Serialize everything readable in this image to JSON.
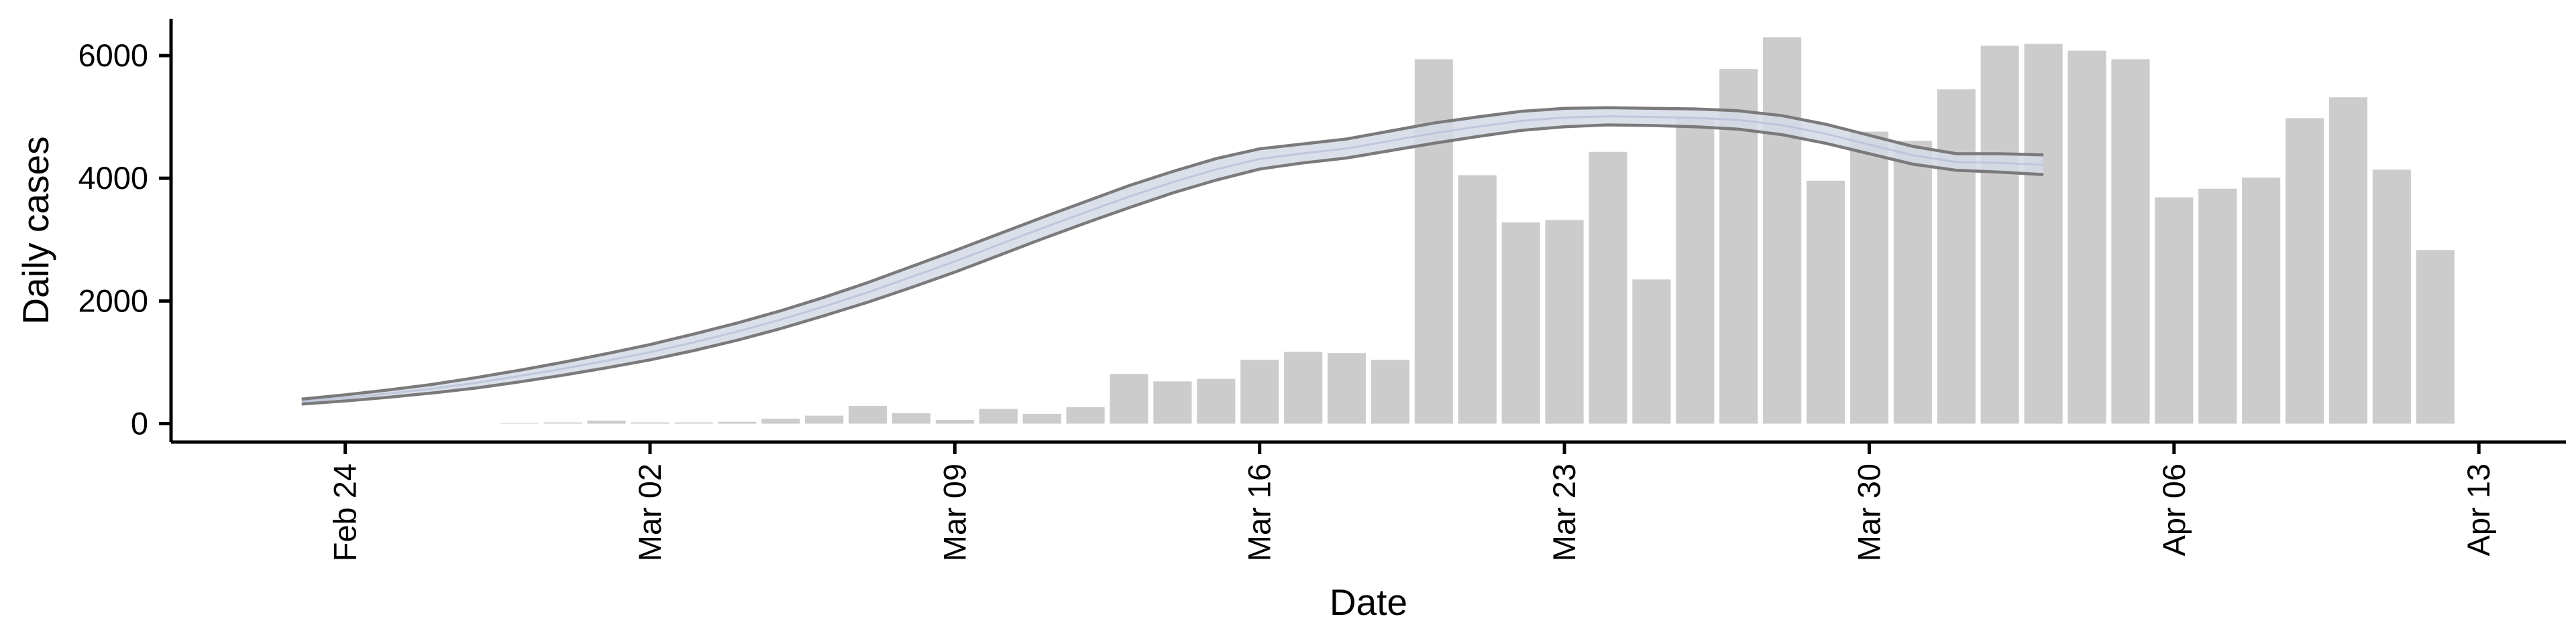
{
  "chart_data": {
    "type": "bar",
    "xlabel": "Date",
    "ylabel": "Daily cases",
    "x_ticks": [
      "Feb 24",
      "Mar 02",
      "Mar 09",
      "Mar 16",
      "Mar 23",
      "Mar 30",
      "Apr 06",
      "Apr 13"
    ],
    "y_ticks": [
      0,
      2000,
      4000,
      6000
    ],
    "ylim": [
      -300,
      6600
    ],
    "xlim": [
      "2020-02-20",
      "2020-04-15"
    ],
    "grid": false,
    "legend": "none",
    "colors": {
      "bars": "#cccccc",
      "band_fill": "#d4d9e6",
      "band_edge": "#7a7a7a"
    },
    "bars": {
      "dates": [
        "2020-02-28",
        "2020-02-29",
        "2020-03-01",
        "2020-03-02",
        "2020-03-03",
        "2020-03-04",
        "2020-03-05",
        "2020-03-06",
        "2020-03-07",
        "2020-03-08",
        "2020-03-09",
        "2020-03-10",
        "2020-03-11",
        "2020-03-12",
        "2020-03-13",
        "2020-03-14",
        "2020-03-15",
        "2020-03-16",
        "2020-03-17",
        "2020-03-18",
        "2020-03-19",
        "2020-03-20",
        "2020-03-21",
        "2020-03-22",
        "2020-03-23",
        "2020-03-24",
        "2020-03-25",
        "2020-03-26",
        "2020-03-27",
        "2020-03-28",
        "2020-03-29",
        "2020-03-30",
        "2020-03-31",
        "2020-04-01",
        "2020-04-02",
        "2020-04-03",
        "2020-04-04",
        "2020-04-05",
        "2020-04-06",
        "2020-04-07",
        "2020-04-08",
        "2020-04-09",
        "2020-04-10",
        "2020-04-11",
        "2020-04-12"
      ],
      "values": [
        10,
        20,
        50,
        20,
        20,
        30,
        80,
        130,
        290,
        170,
        60,
        240,
        160,
        270,
        810,
        690,
        730,
        1040,
        1170,
        1150,
        1040,
        5940,
        4050,
        3280,
        3320,
        4430,
        2350,
        4990,
        5780,
        6300,
        3960,
        4760,
        4610,
        5450,
        6160,
        6190,
        6080,
        5940,
        3690,
        3830,
        4010,
        4980,
        5320,
        4140,
        2830
      ]
    },
    "band": {
      "dates": [
        "2020-02-23",
        "2020-02-24",
        "2020-02-25",
        "2020-02-26",
        "2020-02-27",
        "2020-02-28",
        "2020-02-29",
        "2020-03-01",
        "2020-03-02",
        "2020-03-03",
        "2020-03-04",
        "2020-03-05",
        "2020-03-06",
        "2020-03-07",
        "2020-03-08",
        "2020-03-09",
        "2020-03-10",
        "2020-03-11",
        "2020-03-12",
        "2020-03-13",
        "2020-03-14",
        "2020-03-15",
        "2020-03-16",
        "2020-03-17",
        "2020-03-18",
        "2020-03-19",
        "2020-03-20",
        "2020-03-21",
        "2020-03-22",
        "2020-03-23",
        "2020-03-24",
        "2020-03-25",
        "2020-03-26",
        "2020-03-27",
        "2020-03-28",
        "2020-03-29",
        "2020-03-30",
        "2020-03-31",
        "2020-04-01",
        "2020-04-02",
        "2020-04-03"
      ],
      "upper": [
        400,
        470,
        550,
        640,
        750,
        870,
        1000,
        1140,
        1290,
        1460,
        1640,
        1840,
        2060,
        2300,
        2560,
        2820,
        3090,
        3360,
        3620,
        3880,
        4110,
        4320,
        4480,
        4560,
        4640,
        4770,
        4900,
        5000,
        5090,
        5140,
        5150,
        5140,
        5130,
        5100,
        5020,
        4880,
        4700,
        4520,
        4400,
        4400,
        4380
      ],
      "lower": [
        320,
        370,
        430,
        500,
        580,
        680,
        790,
        910,
        1040,
        1190,
        1360,
        1550,
        1760,
        1980,
        2220,
        2470,
        2740,
        3010,
        3270,
        3520,
        3760,
        3970,
        4150,
        4250,
        4330,
        4450,
        4570,
        4680,
        4780,
        4840,
        4870,
        4860,
        4840,
        4800,
        4710,
        4570,
        4400,
        4230,
        4130,
        4100,
        4060
      ]
    }
  }
}
